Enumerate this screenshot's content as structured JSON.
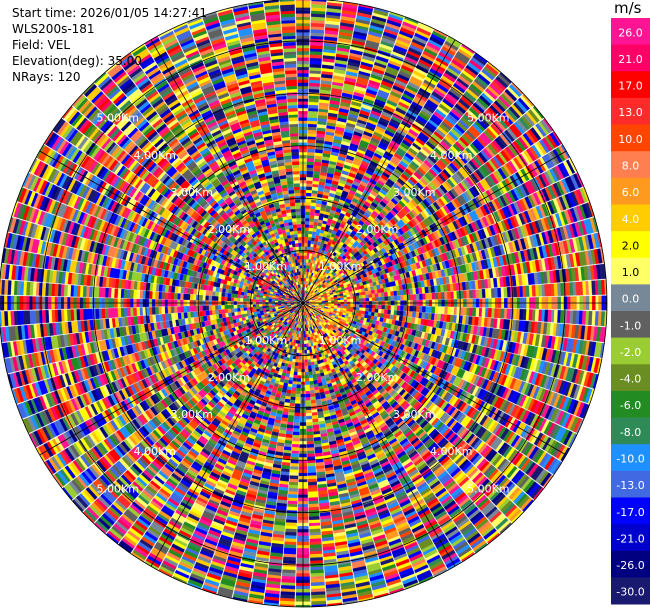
{
  "info": {
    "start_time": "Start time: 2026/01/05 14:27:41",
    "instrument": "WLS200s-181",
    "field": "Field: VEL",
    "elevation": "Elevation(deg): 35.00",
    "nrays": "NRays: 120"
  },
  "colorbar": {
    "unit": "m/s",
    "levels": [
      {
        "label": "26.0",
        "color": "#ff1493"
      },
      {
        "label": "21.0",
        "color": "#ff0066"
      },
      {
        "label": "17.0",
        "color": "#ff0000"
      },
      {
        "label": "13.0",
        "color": "#ff2a2a"
      },
      {
        "label": "10.0",
        "color": "#ff4500"
      },
      {
        "label": "8.0",
        "color": "#ff7f50"
      },
      {
        "label": "6.0",
        "color": "#ff9a1f"
      },
      {
        "label": "4.0",
        "color": "#ffcc00"
      },
      {
        "label": "2.0",
        "color": "#ffff00"
      },
      {
        "label": "1.0",
        "color": "#ffff66"
      },
      {
        "label": "0.0",
        "color": "#778899"
      },
      {
        "label": "-1.0",
        "color": "#606060"
      },
      {
        "label": "-2.0",
        "color": "#9acd32"
      },
      {
        "label": "-4.0",
        "color": "#6b8e23"
      },
      {
        "label": "-6.0",
        "color": "#228b22"
      },
      {
        "label": "-8.0",
        "color": "#2e8b57"
      },
      {
        "label": "-10.0",
        "color": "#1e90ff"
      },
      {
        "label": "-13.0",
        "color": "#4169e1"
      },
      {
        "label": "-17.0",
        "color": "#0000ff"
      },
      {
        "label": "-21.0",
        "color": "#0000cd"
      },
      {
        "label": "-26.0",
        "color": "#000080"
      },
      {
        "label": "-30.0",
        "color": "#191970"
      }
    ]
  },
  "chart_data": {
    "type": "heatmap",
    "projection": "polar-ppi",
    "field": "VEL",
    "units": "m/s",
    "nrays": 120,
    "elevation_deg": 35.0,
    "range_rings_km": [
      1,
      2,
      3,
      4,
      5
    ],
    "ring_labels": [
      "1.00Km",
      "2.00Km",
      "3.00Km",
      "4.00Km",
      "5.00Km"
    ],
    "max_range_km": 5.8
  }
}
